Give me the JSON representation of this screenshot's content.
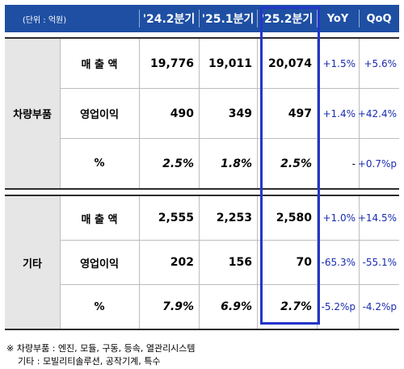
{
  "header": {
    "unit": "(단위 : 억원)",
    "col1": "'24.2분기",
    "col2": "'25.1분기",
    "col3": "'25.2분기",
    "col4": "YoY",
    "col5": "QoQ"
  },
  "groups": [
    {
      "label": "차량부품",
      "rows": [
        {
          "metric": "매 출 액",
          "v1": "19,776",
          "v2": "19,011",
          "v3": "20,074",
          "yoy": "+1.5%",
          "qoq": "+5.6%"
        },
        {
          "metric": "영업이익",
          "v1": "490",
          "v2": "349",
          "v3": "497",
          "yoy": "+1.4%",
          "qoq": "+42.4%"
        },
        {
          "metric": "%",
          "v1": "2.5%",
          "v2": "1.8%",
          "v3": "2.5%",
          "yoy": "-",
          "qoq": "+0.7%p"
        }
      ]
    },
    {
      "label": "기타",
      "rows": [
        {
          "metric": "매 출 액",
          "v1": "2,555",
          "v2": "2,253",
          "v3": "2,580",
          "yoy": "+1.0%",
          "qoq": "+14.5%"
        },
        {
          "metric": "영업이익",
          "v1": "202",
          "v2": "156",
          "v3": "70",
          "yoy": "-65.3%",
          "qoq": "-55.1%"
        },
        {
          "metric": "%",
          "v1": "7.9%",
          "v2": "6.9%",
          "v3": "2.7%",
          "yoy": "-5.2%p",
          "qoq": "-4.2%p"
        }
      ]
    }
  ],
  "notes": {
    "line1": "※ 차량부품 : 엔진, 모듈, 구동, 등속, 열관리시스템",
    "line2": "기타 : 모빌리티솔루션, 공작기계, 특수"
  },
  "colors": {
    "header_bg": "#1e4fa3",
    "highlight_border": "#2336c9",
    "change_text": "#1a2bb0",
    "label_bg": "#e6e6e6"
  }
}
